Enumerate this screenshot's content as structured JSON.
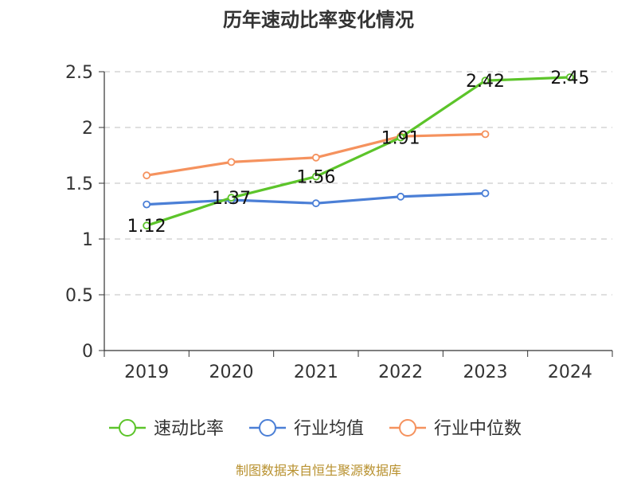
{
  "chart_data": {
    "type": "line",
    "title": "历年速动比率变化情况",
    "categories": [
      "2019",
      "2020",
      "2021",
      "2022",
      "2023",
      "2024"
    ],
    "ylim": [
      0,
      2.5
    ],
    "yticks": [
      "0",
      "0.5",
      "1",
      "1.5",
      "2",
      "2.5"
    ],
    "grid": true,
    "legend_position": "bottom",
    "series": [
      {
        "name": "速动比率",
        "color": "#5cc42a",
        "values": [
          1.12,
          1.37,
          1.56,
          1.91,
          2.42,
          2.45
        ],
        "labels": [
          "1.12",
          "1.37",
          "1.56",
          "1.91",
          "2.42",
          "2.45"
        ]
      },
      {
        "name": "行业均值",
        "color": "#4b7fd6",
        "values": [
          1.31,
          1.35,
          1.32,
          1.38,
          1.41,
          null
        ]
      },
      {
        "name": "行业中位数",
        "color": "#f5925e",
        "values": [
          1.57,
          1.69,
          1.73,
          1.92,
          1.94,
          null
        ]
      }
    ]
  },
  "source": "制图数据来自恒生聚源数据库"
}
